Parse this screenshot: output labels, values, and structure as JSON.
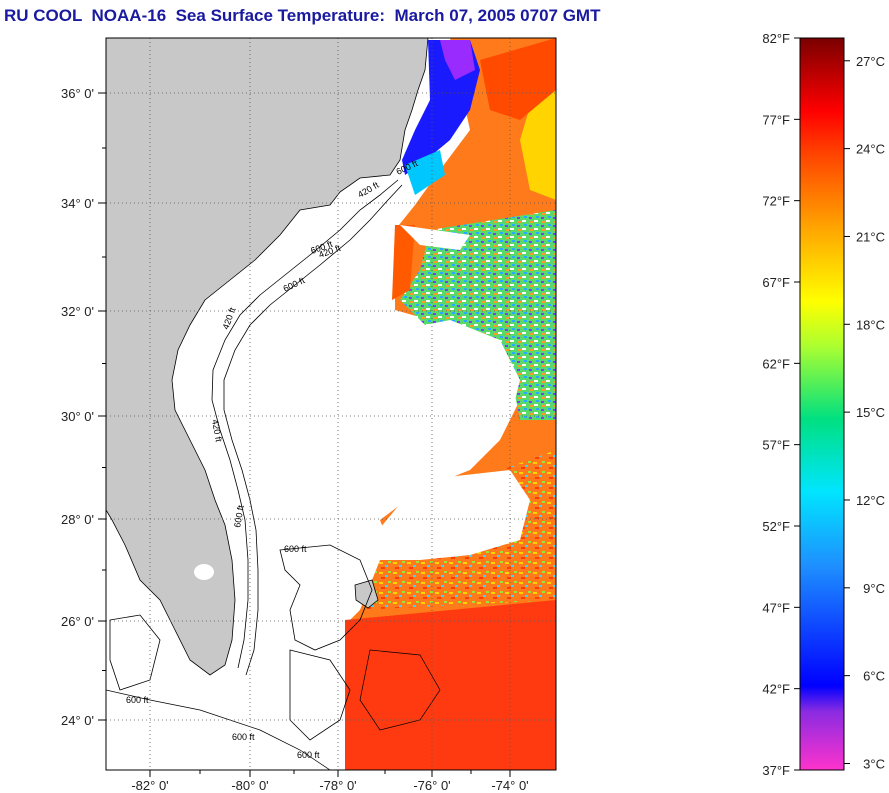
{
  "title": "RU COOL  NOAA-16  Sea Surface Temperature:  March 07, 2005 0707 GMT",
  "map": {
    "lat_labels": [
      "36° 0'",
      "34° 0'",
      "32° 0'",
      "30° 0'",
      "28° 0'",
      "26° 0'",
      "24° 0'"
    ],
    "lon_labels": [
      "-82° 0'",
      "-80° 0'",
      "-78° 0'",
      "-76° 0'",
      "-74° 0'"
    ],
    "contour_labels": [
      "420 ft",
      "420 ft",
      "600 ft",
      "420 ft",
      "600 ft",
      "420 ft",
      "600 ft",
      "600 ft",
      "600 ft",
      "600 ft",
      "600 ft",
      "600 ft"
    ],
    "colors": {
      "land": "#c8c8c8",
      "cloud": "#ffffff",
      "contour": "#000000"
    }
  },
  "colorbar": {
    "f_labels": [
      "82°F",
      "77°F",
      "72°F",
      "67°F",
      "62°F",
      "57°F",
      "52°F",
      "47°F",
      "42°F",
      "37°F"
    ],
    "c_labels": [
      "27°C",
      "24°C",
      "21°C",
      "18°C",
      "15°C",
      "12°C",
      "9°C",
      "6°C",
      "3°C"
    ],
    "f_range": [
      37,
      82
    ],
    "colors": [
      "#ff33cc",
      "#8a2be2",
      "#0000ff",
      "#1e90ff",
      "#00e5ff",
      "#00e080",
      "#adff2f",
      "#ffff00",
      "#ffa500",
      "#ff4500",
      "#ff0000",
      "#b00000",
      "#7a0000"
    ]
  }
}
